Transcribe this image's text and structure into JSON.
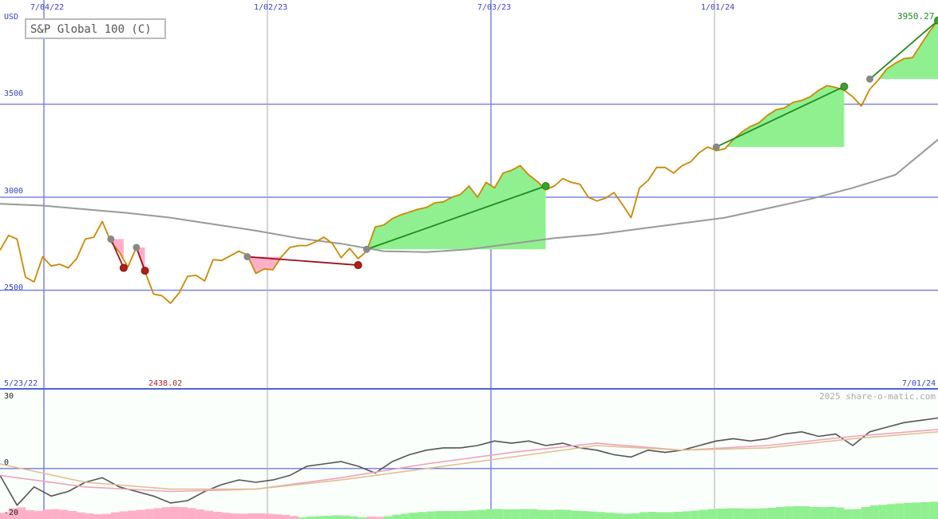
{
  "colors": {
    "price": "#cc8800",
    "ma": "#999999",
    "grid": "#7a86e0",
    "gain_fill": "#90f090",
    "loss_fill": "#ffb0c8",
    "gain_line": "#1e8c1e",
    "loss_line": "#a01020",
    "osc_main": "#555555",
    "osc_pink": "#f0a0c0",
    "osc_tan": "#e0c090",
    "vol_green": "#90f090",
    "vol_pink": "#ffb0c8"
  },
  "chart_data": [
    {
      "type": "line",
      "title": "S&P Global 100 (C)",
      "ylabel": "USD",
      "x_tick_labels": [
        "7/04/22",
        "1/02/23",
        "7/03/23",
        "1/01/24"
      ],
      "y_tick_labels": [
        "2500",
        "3000",
        "3500"
      ],
      "ylim": [
        1970,
        4060
      ],
      "grid": true,
      "last_value_label": "3950.27",
      "min_label": "2438.02",
      "start_date_label": "5/23/22",
      "end_date_label": "7/01/24",
      "credit": "2025 share-o-matic.com",
      "x_range": [
        0,
        110
      ],
      "series": [
        {
          "role": "price",
          "x": [
            0,
            1,
            2,
            3,
            4,
            5,
            6,
            7,
            8,
            9,
            10,
            11,
            12,
            13,
            14,
            15,
            16,
            17,
            18,
            19,
            20,
            21,
            22,
            23,
            24,
            25,
            26,
            27,
            28,
            29,
            30,
            31,
            32,
            33,
            34,
            35,
            36,
            37,
            38,
            39,
            40,
            41,
            42,
            43,
            44,
            45,
            46,
            47,
            48,
            49,
            50,
            51,
            52,
            53,
            54,
            55,
            56,
            57,
            58,
            59,
            60,
            61,
            62,
            63,
            64,
            65,
            66,
            67,
            68,
            69,
            70,
            71,
            72,
            73,
            74,
            75,
            76,
            77,
            78,
            79,
            80,
            81,
            82,
            83,
            84,
            85,
            86,
            87,
            88,
            89,
            90,
            91,
            92,
            93,
            94,
            95,
            96,
            97,
            98,
            99,
            100,
            101,
            102,
            103,
            104,
            105,
            106,
            107,
            108,
            109,
            110
          ],
          "values": [
            2715,
            2795,
            2775,
            2570,
            2545,
            2680,
            2630,
            2640,
            2620,
            2670,
            2775,
            2785,
            2870,
            2760,
            2705,
            2625,
            2730,
            2600,
            2480,
            2470,
            2430,
            2485,
            2575,
            2580,
            2550,
            2665,
            2660,
            2685,
            2710,
            2690,
            2590,
            2615,
            2610,
            2680,
            2730,
            2740,
            2740,
            2760,
            2785,
            2750,
            2675,
            2725,
            2670,
            2710,
            2840,
            2850,
            2885,
            2905,
            2920,
            2935,
            2945,
            2970,
            2975,
            3000,
            3015,
            3060,
            3000,
            3080,
            3050,
            3130,
            3145,
            3170,
            3120,
            3085,
            3040,
            3060,
            3100,
            3080,
            3070,
            3000,
            2980,
            2995,
            3025,
            2960,
            2890,
            3050,
            3090,
            3160,
            3160,
            3130,
            3170,
            3190,
            3240,
            3270,
            3250,
            3260,
            3310,
            3350,
            3380,
            3400,
            3440,
            3470,
            3480,
            3510,
            3520,
            3540,
            3575,
            3600,
            3590,
            3575,
            3540,
            3490,
            3580,
            3630,
            3690,
            3720,
            3745,
            3750,
            3820,
            3890,
            3950
          ]
        },
        {
          "role": "moving-average",
          "x": [
            0,
            5,
            10,
            15,
            20,
            25,
            30,
            35,
            40,
            45,
            50,
            55,
            60,
            65,
            70,
            75,
            80,
            85,
            90,
            95,
            100,
            105,
            110
          ],
          "values": [
            2965,
            2955,
            2935,
            2915,
            2890,
            2855,
            2820,
            2780,
            2750,
            2710,
            2705,
            2720,
            2750,
            2780,
            2800,
            2830,
            2860,
            2890,
            2940,
            2990,
            3050,
            3120,
            3310
          ]
        },
        {
          "role": "loss-signal",
          "x": [
            13,
            14.5
          ],
          "values": [
            2775,
            2620
          ]
        },
        {
          "role": "loss-signal",
          "x": [
            16,
            17
          ],
          "values": [
            2730,
            2605
          ]
        },
        {
          "role": "loss-signal",
          "x": [
            29,
            42
          ],
          "values": [
            2680,
            2635
          ]
        },
        {
          "role": "gain-signal",
          "x": [
            43,
            64
          ],
          "values": [
            2720,
            3060
          ]
        },
        {
          "role": "gain-signal",
          "x": [
            84,
            99
          ],
          "values": [
            3270,
            3595
          ]
        },
        {
          "role": "gain-signal",
          "x": [
            102,
            110
          ],
          "values": [
            3635,
            3950
          ]
        }
      ]
    },
    {
      "type": "line",
      "y_tick_labels": [
        "30",
        "0",
        "-20"
      ],
      "ylim": [
        -22,
        34
      ],
      "x_range": [
        0,
        110
      ],
      "series": [
        {
          "role": "oscillator",
          "x": [
            0,
            2,
            4,
            6,
            8,
            10,
            12,
            14,
            16,
            18,
            20,
            22,
            24,
            26,
            28,
            30,
            32,
            34,
            36,
            38,
            40,
            42,
            44,
            46,
            48,
            50,
            52,
            54,
            56,
            58,
            60,
            62,
            64,
            66,
            68,
            70,
            72,
            74,
            76,
            78,
            80,
            82,
            84,
            86,
            88,
            90,
            92,
            94,
            96,
            98,
            100,
            102,
            104,
            106,
            108,
            110
          ],
          "values": [
            -3,
            -16,
            -8,
            -12,
            -10,
            -6,
            -4,
            -8,
            -10,
            -12,
            -15,
            -14,
            -10,
            -7,
            -5,
            -6,
            -5,
            -3,
            1,
            2,
            3,
            1,
            -2,
            3,
            6,
            8,
            9,
            9,
            10,
            12,
            11,
            12,
            10,
            11,
            9,
            8,
            6,
            5,
            8,
            7,
            8,
            10,
            12,
            13,
            12,
            13,
            15,
            16,
            14,
            15,
            10,
            16,
            18,
            20,
            21,
            22
          ]
        },
        {
          "role": "signal-fast",
          "x": [
            0,
            10,
            20,
            30,
            40,
            50,
            60,
            70,
            80,
            90,
            100,
            110
          ],
          "values": [
            -3,
            -8,
            -10,
            -9,
            -4,
            2,
            7,
            11,
            8,
            10,
            14,
            17
          ]
        },
        {
          "role": "signal-slow",
          "x": [
            0,
            10,
            20,
            30,
            40,
            50,
            60,
            70,
            80,
            90,
            100,
            110
          ],
          "values": [
            2,
            -6,
            -9,
            -9,
            -5,
            0,
            5,
            10,
            8,
            9,
            13,
            16
          ]
        }
      ]
    }
  ]
}
